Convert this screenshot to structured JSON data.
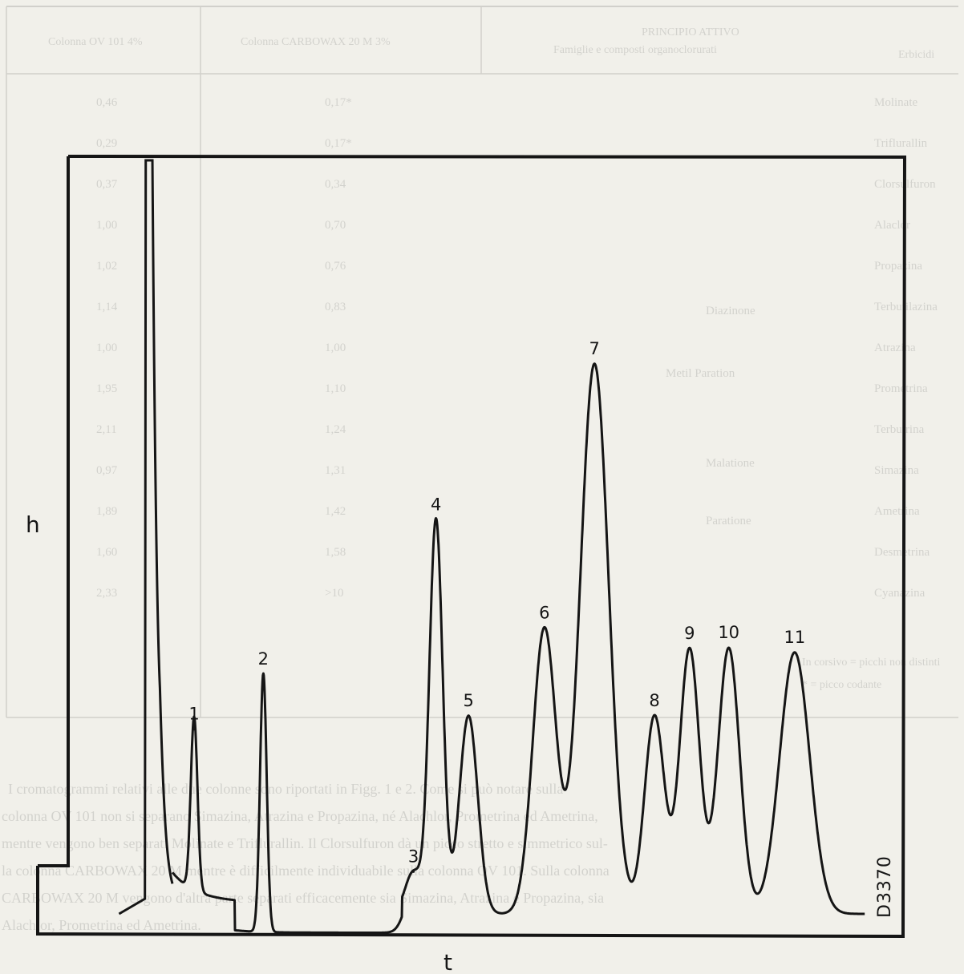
{
  "chart_data": {
    "type": "line",
    "title": "",
    "xlabel": "t",
    "ylabel": "h",
    "code": "D3370",
    "grid": false,
    "legend": "none",
    "xlim": [
      0,
      100
    ],
    "ylim": [
      0,
      100
    ],
    "solvent_front": {
      "x": 9.5,
      "height": 100
    },
    "peaks": [
      {
        "label": "1",
        "x": 15.1,
        "height": 23.0,
        "width": 0.4
      },
      {
        "label": "2",
        "x": 23.4,
        "height": 34.3,
        "width": 0.4
      },
      {
        "label": "3",
        "x": 41.4,
        "height": 5.6,
        "width": 1.0
      },
      {
        "label": "4",
        "x": 44.1,
        "height": 52.3,
        "width": 0.8
      },
      {
        "label": "5",
        "x": 48.0,
        "height": 26.3,
        "width": 1.1
      },
      {
        "label": "6",
        "x": 57.1,
        "height": 37.9,
        "width": 1.4
      },
      {
        "label": "7",
        "x": 63.1,
        "height": 73.0,
        "width": 1.7
      },
      {
        "label": "8",
        "x": 70.3,
        "height": 26.3,
        "width": 1.2
      },
      {
        "label": "9",
        "x": 74.5,
        "height": 35.2,
        "width": 1.2
      },
      {
        "label": "10",
        "x": 79.2,
        "height": 35.3,
        "width": 1.3
      },
      {
        "label": "11",
        "x": 87.1,
        "height": 34.7,
        "width": 1.8
      }
    ]
  },
  "bleed_through": {
    "table_header": [
      "Colonna OV 101 4%",
      "Colonna CARBOWAX 20 M 3%",
      "PRINCIPIO ATTIVO",
      "Famiglie e composti organoclorurati",
      "Erbicidi"
    ],
    "rows": [
      {
        "name": "Molinate",
        "v1": "0,17*",
        "v2": "0,46"
      },
      {
        "name": "Triflurallin",
        "v1": "0,17*",
        "v2": "0,29"
      },
      {
        "name": "Clorsulfuron",
        "v1": "0,34",
        "v2": "0,37"
      },
      {
        "name": "Alaclor",
        "v1": "0,70",
        "v2": "1,00"
      },
      {
        "name": "Propazina",
        "v1": "0,76",
        "v2": "1,02"
      },
      {
        "name": "Terbutilazina",
        "v1": "0,83",
        "v2": "1,14"
      },
      {
        "name": "Atrazina",
        "v1": "1,00",
        "v2": "1,00"
      },
      {
        "name": "Prometrina",
        "v1": "1,10",
        "v2": "1,95"
      },
      {
        "name": "Terbutrina",
        "v1": "1,24",
        "v2": "2,11"
      },
      {
        "name": "Simazina",
        "v1": "1,31",
        "v2": "0,97"
      },
      {
        "name": "Ametrina",
        "v1": "1,42",
        "v2": "1,89"
      },
      {
        "name": "Desmetrina",
        "v1": "1,58",
        "v2": "1,60"
      },
      {
        "name": "Cyanazina",
        "v1": ">10",
        "v2": "2,33"
      }
    ],
    "groups": [
      "Diazinone",
      "Metil Paration",
      "Malatione",
      "Paratione"
    ],
    "footnote": [
      "In corsivo = picchi non distinti",
      "* = picco codante"
    ],
    "paragraph": [
      "I cromatogrammi relativi alle due colonne sono riportati in Figg. 1 e 2. Come si può notare sulla",
      "colonna OV 101 non si separano Simazina, Atrazina e Propazina, né Alachlor, Prometrina ed Ametrina,",
      "mentre vengono ben separati Molinate e Triflurallin. Il Clorsulfuron dà un picco stretto e simmetrico sul-",
      "la colonna CARBOWAX 20 M mentre è difficilmente individuabile sulla colonna OV 101. Sulla colonna",
      "CARBOWAX 20 M vengono d'altra parte separati efficacemente sia Simazina, Atrazina e Propazina, sia",
      "Alachlor, Prometrina ed Ametrina."
    ]
  }
}
